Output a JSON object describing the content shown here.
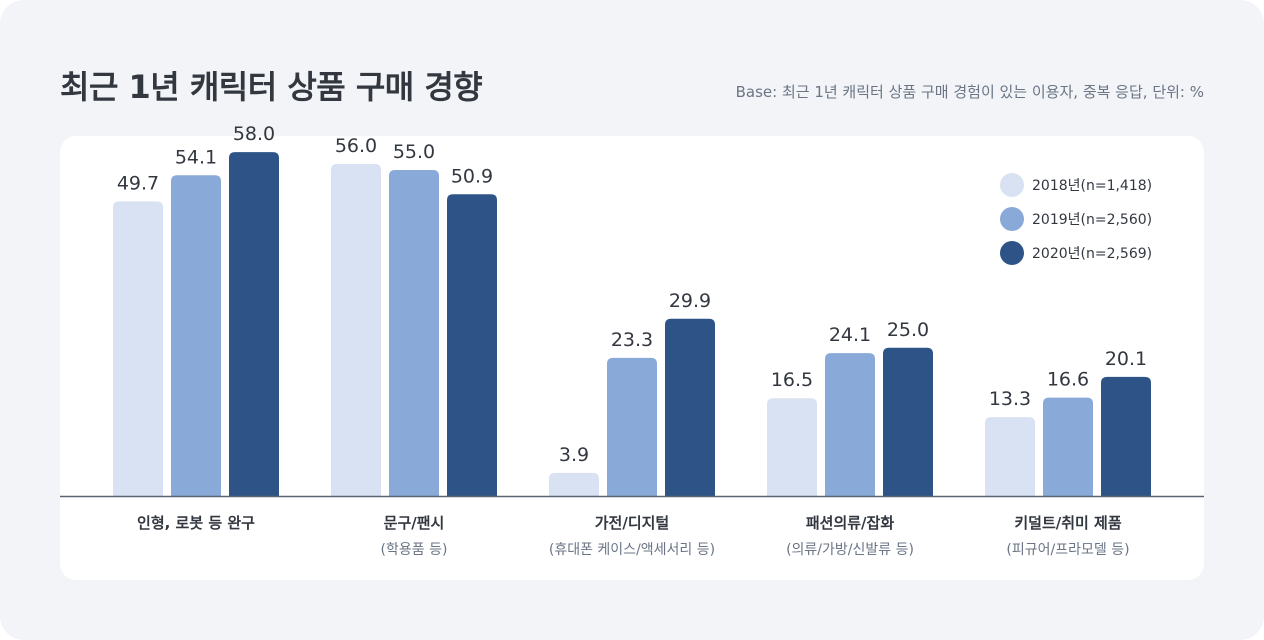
{
  "header": {
    "title": "최근 1년 캐릭터 상품 구매 경향",
    "note": "Base: 최근 1년 캐릭터 상품 구매 경험이 있는 이용자, 중복 응답, 단위: %"
  },
  "colors": {
    "series": [
      "#d9e2f2",
      "#89a9d8",
      "#2e5487"
    ],
    "axis": "#5a6374",
    "value_label": "#333840",
    "sub_label": "#6b7585"
  },
  "chart_data": {
    "type": "bar",
    "title": "최근 1년 캐릭터 상품 구매 경향",
    "categories": [
      "인형, 로봇 등 완구",
      "문구/팬시",
      "가전/디지털",
      "패션의류/잡화",
      "키덜트/취미 제품"
    ],
    "category_subtitles": [
      "",
      "(학용품 등)",
      "(휴대폰 케이스/액세서리 등)",
      "(의류/가방/신발류 등)",
      "(피규어/프라모델 등)"
    ],
    "series": [
      {
        "name": "2018년(n=1,418)",
        "values": [
          49.7,
          56.0,
          3.9,
          16.5,
          13.3
        ]
      },
      {
        "name": "2019년(n=2,560)",
        "values": [
          54.1,
          55.0,
          23.3,
          24.1,
          16.6
        ]
      },
      {
        "name": "2020년(n=2,569)",
        "values": [
          58.0,
          50.9,
          29.9,
          25.0,
          20.1
        ]
      }
    ],
    "value_labels": [
      [
        "49.7",
        "56.0",
        "3.9",
        "16.5",
        "13.3"
      ],
      [
        "54.1",
        "55.0",
        "23.3",
        "24.1",
        "16.6"
      ],
      [
        "58.0",
        "50.9",
        "29.9",
        "25.0",
        "20.1"
      ]
    ],
    "xlabel": "",
    "ylabel": "",
    "ylim": [
      0,
      60
    ],
    "grid": false,
    "legend": "top-right"
  }
}
